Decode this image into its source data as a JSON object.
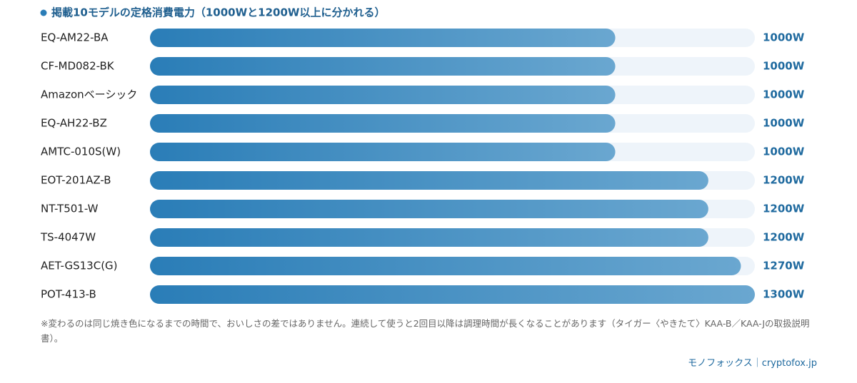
{
  "chart_data": {
    "type": "bar",
    "orientation": "horizontal",
    "title": "掲載10モデルの定格消費電力（1000Wと1200W以上に分かれる）",
    "categories": [
      "EQ-AM22-BA",
      "CF-MD082-BK",
      "Amazonベーシック",
      "EQ-AH22-BZ",
      "AMTC-010S(W)",
      "EOT-201AZ-B",
      "NT-T501-W",
      "TS-4047W",
      "AET-GS13C(G)",
      "POT-413-B"
    ],
    "values": [
      1000,
      1000,
      1000,
      1000,
      1000,
      1200,
      1200,
      1200,
      1270,
      1300
    ],
    "value_labels": [
      "1000W",
      "1000W",
      "1000W",
      "1000W",
      "1000W",
      "1200W",
      "1200W",
      "1200W",
      "1270W",
      "1300W"
    ],
    "xlim": [
      0,
      1300
    ],
    "gradient": [
      "#2a7db7",
      "#6aa7d0"
    ],
    "track_color": "#eef4fa",
    "note": "※変わるのは同じ焼き色になるまでの時間で、おいしさの差ではありません。連続して使うと2回目以降は調理時間が長くなることがあります（タイガー〈やきたて〉KAA-B／KAA-Jの取扱説明書）。",
    "source": "モノフォックス｜cryptofox.jp"
  }
}
